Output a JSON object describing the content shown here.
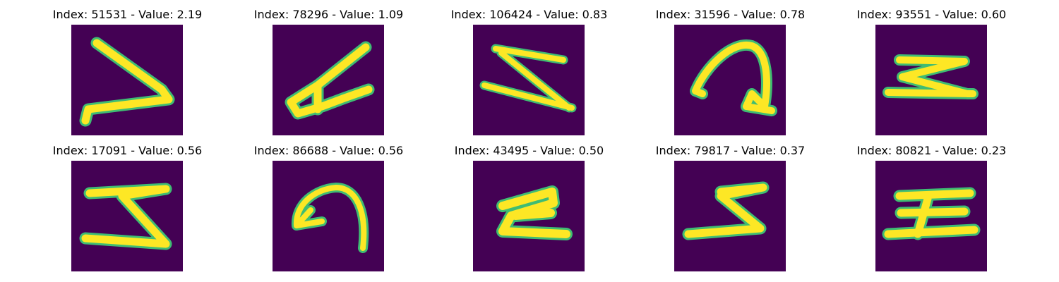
{
  "colors": {
    "background": "#440154",
    "stroke_core": "#fde725",
    "stroke_edge": "#3fbc73",
    "stroke_mid": "#21918c"
  },
  "panels": [
    {
      "index": "51531",
      "value": "2.19",
      "title": "Index: 51531 - Value: 2.19"
    },
    {
      "index": "78296",
      "value": "1.09",
      "title": "Index: 78296 - Value: 1.09"
    },
    {
      "index": "106424",
      "value": "0.83",
      "title": "Index: 106424 - Value: 0.83"
    },
    {
      "index": "31596",
      "value": "0.78",
      "title": "Index: 31596 - Value: 0.78"
    },
    {
      "index": "93551",
      "value": "0.60",
      "title": "Index: 93551 - Value: 0.60"
    },
    {
      "index": "17091",
      "value": "0.56",
      "title": "Index: 17091 - Value: 0.56"
    },
    {
      "index": "86688",
      "value": "0.56",
      "title": "Index: 86688 - Value: 0.56"
    },
    {
      "index": "43495",
      "value": "0.50",
      "title": "Index: 43495 - Value: 0.50"
    },
    {
      "index": "79817",
      "value": "0.37",
      "title": "Index: 79817 - Value: 0.37"
    },
    {
      "index": "80821",
      "value": "0.23",
      "title": "Index: 80821 - Value: 0.23"
    }
  ]
}
